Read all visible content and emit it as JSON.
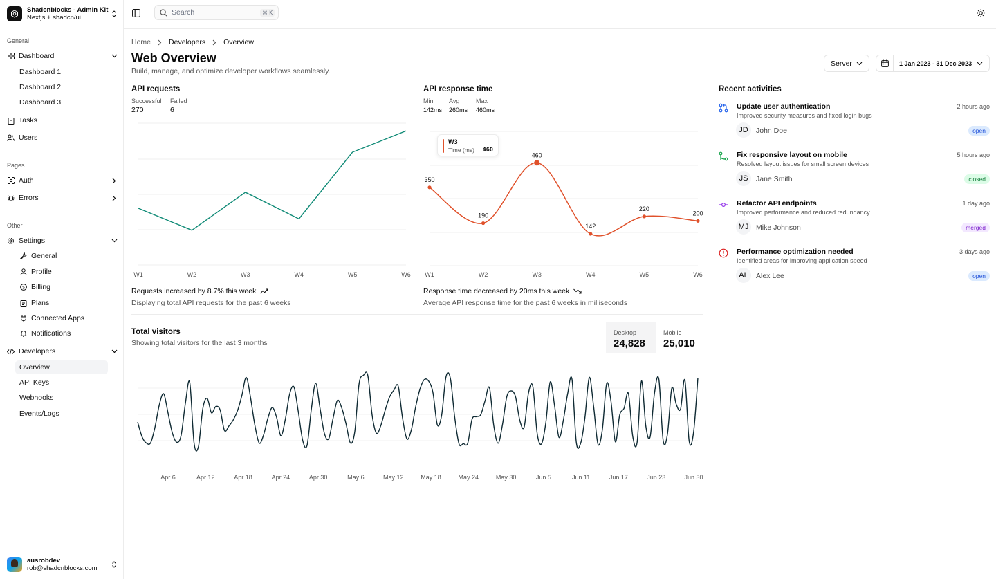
{
  "sidebar": {
    "team": {
      "name": "Shadcnblocks - Admin Kit",
      "subtitle": "Nextjs + shadcn/ui"
    },
    "groups": {
      "general": "General",
      "pages": "Pages",
      "other": "Other"
    },
    "dashboard": {
      "label": "Dashboard",
      "items": [
        "Dashboard 1",
        "Dashboard 2",
        "Dashboard 3"
      ]
    },
    "tasks": "Tasks",
    "users": "Users",
    "auth": "Auth",
    "errors": "Errors",
    "settings": {
      "label": "Settings",
      "items": [
        "General",
        "Profile",
        "Billing",
        "Plans",
        "Connected Apps",
        "Notifications"
      ]
    },
    "developers": {
      "label": "Developers",
      "items": [
        "Overview",
        "API Keys",
        "Webhooks",
        "Events/Logs"
      ]
    },
    "user": {
      "name": "ausrobdev",
      "email": "rob@shadcnblocks.com"
    }
  },
  "header": {
    "search_placeholder": "Search",
    "shortcut": "⌘ K"
  },
  "breadcrumb": [
    "Home",
    "Developers",
    "Overview"
  ],
  "page": {
    "title": "Web Overview",
    "subtitle": "Build, manage, and optimize developer workflows seamlessly."
  },
  "controls": {
    "select_value": "Server",
    "date_range": "1 Jan 2023 - 31 Dec 2023"
  },
  "api_requests": {
    "title": "API requests",
    "successful_label": "Successful",
    "successful_value": "270",
    "failed_label": "Failed",
    "failed_value": "6",
    "footer_title": "Requests increased by 8.7% this week",
    "footer_desc": "Displaying total API requests for the past 6 weeks"
  },
  "api_response": {
    "title": "API response time",
    "min_label": "Min",
    "min_value": "142ms",
    "avg_label": "Avg",
    "avg_value": "260ms",
    "max_label": "Max",
    "max_value": "460ms",
    "tooltip": {
      "week": "W3",
      "label": "Time (ms)",
      "value": "460"
    },
    "footer_title": "Response time decreased by 20ms this week",
    "footer_desc": "Average API response time for the past 6 weeks in milliseconds"
  },
  "visitors": {
    "title": "Total visitors",
    "subtitle": "Showing total visitors for the last 3 months",
    "desktop_label": "Desktop",
    "desktop_value": "24,828",
    "mobile_label": "Mobile",
    "mobile_value": "25,010"
  },
  "activities": {
    "title": "Recent activities",
    "items": [
      {
        "title": "Update user authentication",
        "desc": "Improved security measures and fixed login bugs",
        "time": "2 hours ago",
        "initials": "JD",
        "name": "John Doe",
        "status": "open"
      },
      {
        "title": "Fix responsive layout on mobile",
        "desc": "Resolved layout issues for small screen devices",
        "time": "5 hours ago",
        "initials": "JS",
        "name": "Jane Smith",
        "status": "closed"
      },
      {
        "title": "Refactor API endpoints",
        "desc": "Improved performance and reduced redundancy",
        "time": "1 day ago",
        "initials": "MJ",
        "name": "Mike Johnson",
        "status": "merged"
      },
      {
        "title": "Performance optimization needed",
        "desc": "Identified areas for improving application speed",
        "time": "3 days ago",
        "initials": "AL",
        "name": "Alex Lee",
        "status": "open"
      }
    ]
  },
  "colors": {
    "requests_line": "#0f8a76",
    "response_line": "#e0512b",
    "visitors_line": "#0f2a33"
  },
  "chart_data": [
    {
      "type": "line",
      "x": [
        "W1",
        "W2",
        "W3",
        "W4",
        "W5",
        "W6"
      ],
      "series": [
        {
          "values": [
            160,
            98,
            205,
            130,
            318,
            378
          ]
        }
      ],
      "ylim": [
        0,
        400
      ],
      "grid": true
    },
    {
      "type": "line",
      "x": [
        "W1",
        "W2",
        "W3",
        "W4",
        "W5",
        "W6"
      ],
      "series": [
        {
          "values": [
            350,
            190,
            460,
            142,
            220,
            200
          ]
        }
      ],
      "ylim": [
        0,
        600
      ],
      "grid": true
    },
    {
      "type": "line",
      "x_ticks": [
        "Apr 6",
        "Apr 12",
        "Apr 18",
        "Apr 24",
        "Apr 30",
        "May 6",
        "May 12",
        "May 18",
        "May 24",
        "May 30",
        "Jun 5",
        "Jun 11",
        "Jun 17",
        "Jun 23",
        "Jun 30"
      ],
      "series": [
        {
          "values": [
            222,
            138,
            101,
            103,
            193,
            322,
            384,
            273,
            159,
            106,
            144,
            331,
            450,
            101,
            81,
            299,
            358,
            275,
            311,
            291,
            173,
            199,
            233,
            287,
            374,
            478,
            361,
            204,
            101,
            148,
            245,
            305,
            249,
            143,
            237,
            383,
            423,
            281,
            117,
            87,
            297,
            445,
            301,
            157,
            126,
            244,
            346,
            303,
            210,
            101,
            168,
            443,
            490,
            489,
            260,
            157,
            202,
            290,
            365,
            405,
            428,
            245,
            125,
            175,
            308,
            410,
            465,
            457,
            390,
            206,
            260,
            481,
            474,
            250,
            96,
            98,
            100,
            238,
            253,
            264,
            344,
            419,
            201,
            100,
            205,
            367,
            401,
            368,
            230,
            193,
            389,
            425,
            155,
            97,
            220,
            452,
            316,
            134,
            228,
            382,
            469,
            106,
            100,
            248,
            478,
            310,
            94,
            179,
            443,
            340,
            108,
            264,
            301,
            386,
            140,
            104,
            457,
            199,
            136,
            386,
            469,
            116,
            153,
            417,
            325,
            296,
            463,
            112,
            161,
            476
          ]
        }
      ],
      "ylim": [
        0,
        500
      ],
      "grid": true
    }
  ]
}
